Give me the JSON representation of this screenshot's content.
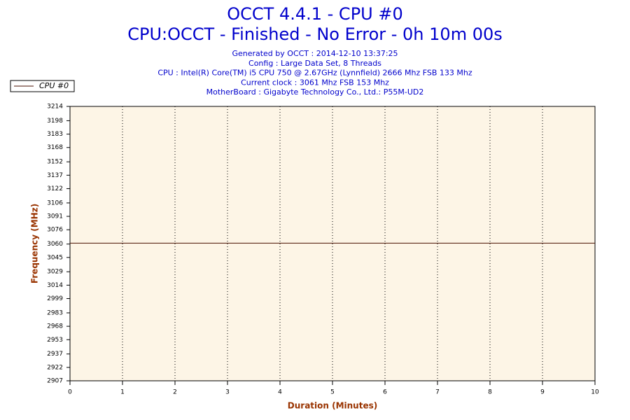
{
  "chart_data": {
    "type": "line",
    "title": "OCCT 4.4.1 - CPU #0",
    "subtitle": "CPU:OCCT - Finished - No Error - 0h 10m 00s",
    "info": [
      "Generated by OCCT : 2014-12-10 13:37:25",
      "Config : Large Data Set, 8 Threads",
      "CPU : Intel(R) Core(TM) i5 CPU 750 @ 2.67GHz (Lynnfield) 2666 Mhz FSB 133 Mhz",
      "Current clock : 3061 Mhz FSB 153 Mhz",
      "MotherBoard : Gigabyte Technology Co., Ltd.: P55M-UD2"
    ],
    "x_label": "Duration (Minutes)",
    "y_label": "Frequency (MHz)",
    "x": [
      0,
      10
    ],
    "series": [
      {
        "name": "CPU #0",
        "color": "#4a1000",
        "values": [
          3061,
          3061
        ]
      }
    ],
    "xlim": [
      0,
      10
    ],
    "xticks": [
      0,
      1,
      2,
      3,
      4,
      5,
      6,
      7,
      8,
      9,
      10
    ],
    "ylim": [
      2907,
      3214
    ],
    "yticks": [
      2907,
      2922,
      2937,
      2953,
      2968,
      2983,
      2999,
      3014,
      3029,
      3045,
      3060,
      3076,
      3091,
      3106,
      3122,
      3137,
      3152,
      3168,
      3183,
      3198,
      3214
    ],
    "grid": true,
    "legend": "top-left"
  }
}
